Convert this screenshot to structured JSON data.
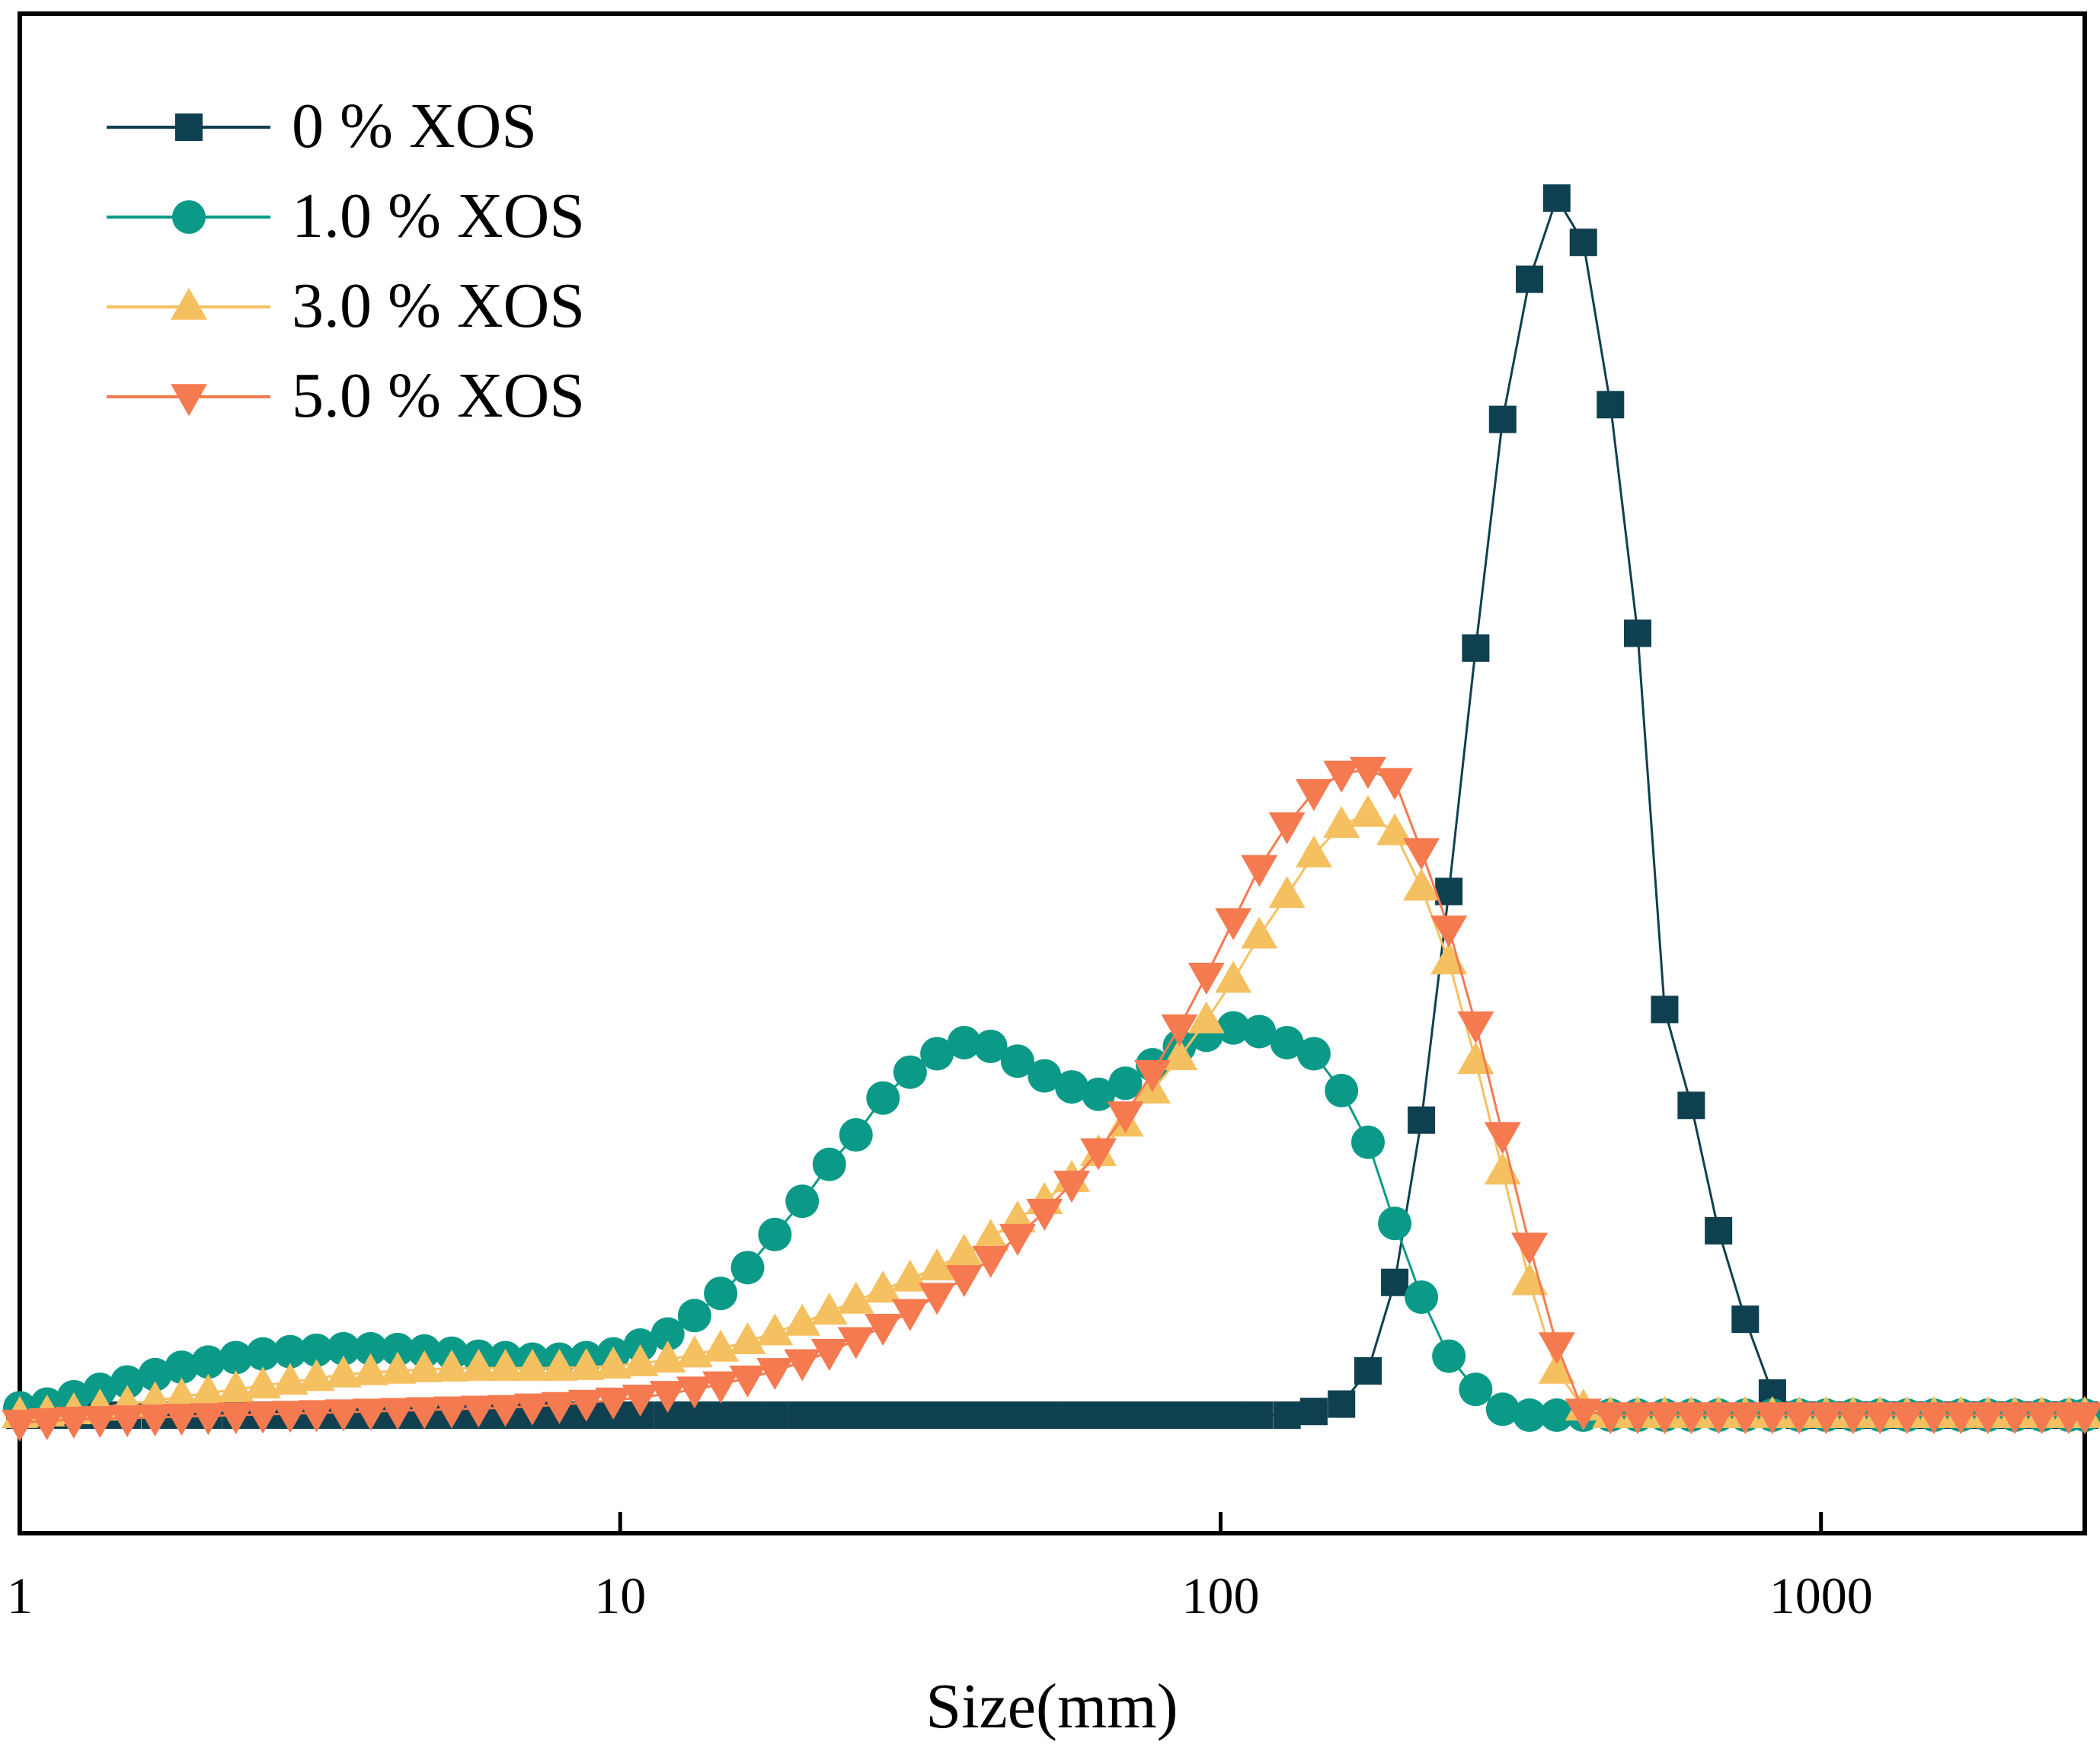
{
  "chart_data": {
    "type": "line",
    "title": "",
    "xlabel": "Size(mm)",
    "ylabel": "",
    "x_scale": "log",
    "xlim": [
      1,
      2750
    ],
    "ylim": [
      -1.6,
      19
    ],
    "x_ticks": [
      1,
      10,
      100,
      1000
    ],
    "x_tick_labels": [
      "1",
      "10",
      "100",
      "1000"
    ],
    "legend_position": "top-left",
    "x": [
      1.0,
      1.11,
      1.23,
      1.36,
      1.51,
      1.68,
      1.86,
      2.06,
      2.29,
      2.54,
      2.82,
      3.12,
      3.46,
      3.84,
      4.26,
      4.72,
      5.24,
      5.81,
      6.44,
      7.14,
      7.92,
      8.78,
      9.74,
      10.8,
      12.0,
      13.3,
      14.7,
      16.3,
      18.1,
      20.1,
      22.3,
      24.7,
      27.4,
      30.4,
      33.7,
      37.4,
      41.4,
      45.9,
      50.9,
      56.5,
      62.6,
      69.4,
      77.0,
      85.4,
      94.7,
      105,
      116,
      129,
      143,
      159,
      176,
      195,
      216,
      240,
      266,
      295,
      327,
      363,
      402,
      446,
      495,
      549,
      608,
      675,
      748,
      830,
      920,
      1020,
      1131,
      1254,
      1391,
      1542,
      1710,
      1896,
      2103,
      2332,
      2586,
      2750
    ],
    "series": [
      {
        "name": "0 % XOS",
        "color": "#0f4050",
        "marker": "square",
        "values": [
          0.0,
          0.0,
          0.0,
          0.0,
          0.0,
          0.0,
          0.0,
          0.0,
          0.0,
          0.0,
          0.0,
          0.0,
          0.0,
          0.0,
          0.0,
          0.0,
          0.0,
          0.0,
          0.0,
          0.0,
          0.0,
          0.0,
          0.0,
          0.0,
          0.0,
          0.0,
          0.0,
          0.0,
          0.0,
          0.0,
          0.0,
          0.0,
          0.0,
          0.0,
          0.0,
          0.0,
          0.0,
          0.0,
          0.0,
          0.0,
          0.0,
          0.0,
          0.0,
          0.0,
          0.0,
          0.0,
          0.0,
          0.0,
          0.05,
          0.15,
          0.6,
          1.8,
          4.0,
          7.1,
          10.4,
          13.5,
          15.4,
          16.5,
          15.9,
          13.7,
          10.6,
          5.5,
          4.2,
          2.5,
          1.3,
          0.3,
          0.0,
          0.0,
          0.0,
          0.0,
          0.0,
          0.0,
          0.0,
          0.0,
          0.0,
          0.0,
          0.0,
          0.0
        ]
      },
      {
        "name": "1.0 % XOS",
        "color": "#0b9a88",
        "marker": "circle",
        "values": [
          0.1,
          0.15,
          0.25,
          0.35,
          0.45,
          0.55,
          0.65,
          0.72,
          0.78,
          0.83,
          0.86,
          0.88,
          0.9,
          0.9,
          0.89,
          0.87,
          0.84,
          0.8,
          0.78,
          0.76,
          0.76,
          0.78,
          0.83,
          0.95,
          1.1,
          1.35,
          1.65,
          2.0,
          2.45,
          2.9,
          3.4,
          3.8,
          4.3,
          4.65,
          4.9,
          5.05,
          5.0,
          4.8,
          4.6,
          4.45,
          4.35,
          4.5,
          4.75,
          5.0,
          5.15,
          5.25,
          5.2,
          5.05,
          4.9,
          4.4,
          3.7,
          2.6,
          1.6,
          0.8,
          0.35,
          0.08,
          0.0,
          0.0,
          0.0,
          0.0,
          0.0,
          0.0,
          0.0,
          0.0,
          0.0,
          0.0,
          0.0,
          0.0,
          0.0,
          0.0,
          0.0,
          0.0,
          0.0,
          0.0,
          0.0,
          0.0,
          0.0,
          0.0
        ]
      },
      {
        "name": "3.0 % XOS",
        "color": "#f5c060",
        "marker": "triangle-up",
        "values": [
          0.0,
          0.02,
          0.05,
          0.1,
          0.15,
          0.2,
          0.25,
          0.3,
          0.35,
          0.4,
          0.45,
          0.5,
          0.55,
          0.58,
          0.6,
          0.62,
          0.63,
          0.64,
          0.64,
          0.64,
          0.64,
          0.65,
          0.67,
          0.7,
          0.75,
          0.82,
          0.9,
          1.0,
          1.12,
          1.25,
          1.4,
          1.55,
          1.7,
          1.85,
          2.0,
          2.2,
          2.4,
          2.65,
          2.9,
          3.2,
          3.55,
          3.95,
          4.4,
          4.85,
          5.35,
          5.9,
          6.5,
          7.05,
          7.6,
          8.0,
          8.15,
          7.9,
          7.15,
          6.15,
          4.8,
          3.3,
          1.8,
          0.6,
          0.1,
          0.0,
          0.0,
          0.0,
          0.0,
          0.0,
          0.0,
          0.0,
          0.0,
          0.0,
          0.0,
          0.0,
          0.0,
          0.0,
          0.0,
          0.0,
          0.0,
          0.0,
          0.0,
          0.0
        ]
      },
      {
        "name": "5.0 % XOS",
        "color": "#f57a50",
        "marker": "triangle-down",
        "values": [
          -0.1,
          -0.08,
          -0.06,
          -0.05,
          -0.04,
          -0.03,
          -0.02,
          -0.01,
          0.0,
          0.01,
          0.02,
          0.03,
          0.04,
          0.05,
          0.06,
          0.07,
          0.08,
          0.09,
          0.1,
          0.12,
          0.14,
          0.17,
          0.2,
          0.24,
          0.29,
          0.35,
          0.42,
          0.5,
          0.6,
          0.72,
          0.86,
          1.02,
          1.2,
          1.4,
          1.62,
          1.86,
          2.12,
          2.42,
          2.76,
          3.14,
          3.58,
          4.08,
          4.64,
          5.26,
          5.96,
          6.7,
          7.42,
          8.0,
          8.45,
          8.7,
          8.75,
          8.6,
          7.65,
          6.6,
          5.3,
          3.8,
          2.3,
          0.95,
          0.05,
          0.0,
          0.0,
          0.0,
          0.0,
          0.0,
          0.0,
          0.0,
          0.0,
          0.0,
          0.0,
          0.0,
          0.0,
          0.0,
          0.0,
          0.0,
          0.0,
          0.0,
          0.0,
          0.0
        ]
      }
    ]
  }
}
